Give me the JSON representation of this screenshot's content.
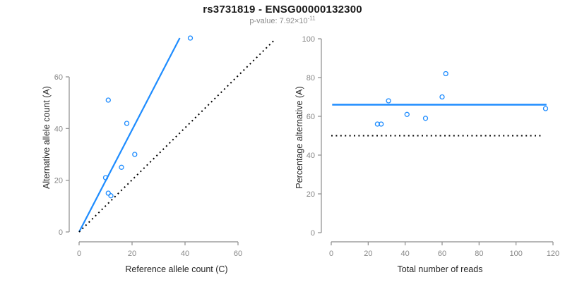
{
  "header": {
    "title": "rs3731819 - ENSG00000132300",
    "subtitle_prefix": "p-value: 7.92×10",
    "subtitle_exponent": "-11"
  },
  "colors": {
    "accent_blue": "#1E8CFF",
    "reference_line_black": "#000000",
    "axis_gray": "#8C8C8C",
    "tick_text_gray": "#878787",
    "axis_label_black": "#262626",
    "subtitle_gray": "#8C8C8C",
    "background": "#FFFFFF"
  },
  "chart_data": [
    {
      "type": "scatter",
      "name": "allele-counts-panel",
      "title": "",
      "xlabel": "Reference allele count (C)",
      "ylabel": "Alternative allele count (A)",
      "xlim": [
        0,
        60
      ],
      "ylim": [
        0,
        60
      ],
      "xticks": [
        0,
        20,
        40,
        60
      ],
      "yticks": [
        0,
        20,
        40,
        60
      ],
      "grid": false,
      "legend": null,
      "points": [
        [
          10,
          21
        ],
        [
          11,
          51
        ],
        [
          11,
          15
        ],
        [
          12,
          14
        ],
        [
          16,
          25
        ],
        [
          18,
          42
        ],
        [
          21,
          30
        ],
        [
          42,
          75
        ]
      ],
      "lines": [
        {
          "name": "regression-line",
          "style": "solid",
          "color": "#1E8CFF",
          "width": 2.2,
          "points": [
            [
              0,
              0
            ],
            [
              38,
              75
            ]
          ]
        },
        {
          "name": "identity-line",
          "style": "dotted",
          "color": "#000000",
          "width": 2.0,
          "points": [
            [
              0,
              0
            ],
            [
              73.5,
              74
            ]
          ]
        }
      ]
    },
    {
      "type": "scatter",
      "name": "percentage-vs-reads-panel",
      "title": "",
      "xlabel": "Total number of reads",
      "ylabel": "Percentage alternative (A)",
      "xlim": [
        0,
        120
      ],
      "ylim": [
        0,
        100
      ],
      "xticks": [
        0,
        20,
        40,
        60,
        80,
        100,
        120
      ],
      "yticks": [
        0,
        20,
        40,
        60,
        80,
        100
      ],
      "grid": false,
      "legend": null,
      "points": [
        [
          25,
          56
        ],
        [
          27,
          56
        ],
        [
          31,
          68
        ],
        [
          41,
          61
        ],
        [
          51,
          59
        ],
        [
          60,
          70
        ],
        [
          62,
          82
        ],
        [
          116,
          64
        ]
      ],
      "lines": [
        {
          "name": "mean-line",
          "style": "solid",
          "color": "#1E8CFF",
          "width": 2.6,
          "points": [
            [
              0.5,
              66
            ],
            [
              116.5,
              66
            ]
          ]
        },
        {
          "name": "reference-line",
          "style": "dotted",
          "color": "#000000",
          "width": 2.0,
          "points": [
            [
              0,
              50
            ],
            [
              114,
              50
            ]
          ]
        }
      ]
    }
  ]
}
